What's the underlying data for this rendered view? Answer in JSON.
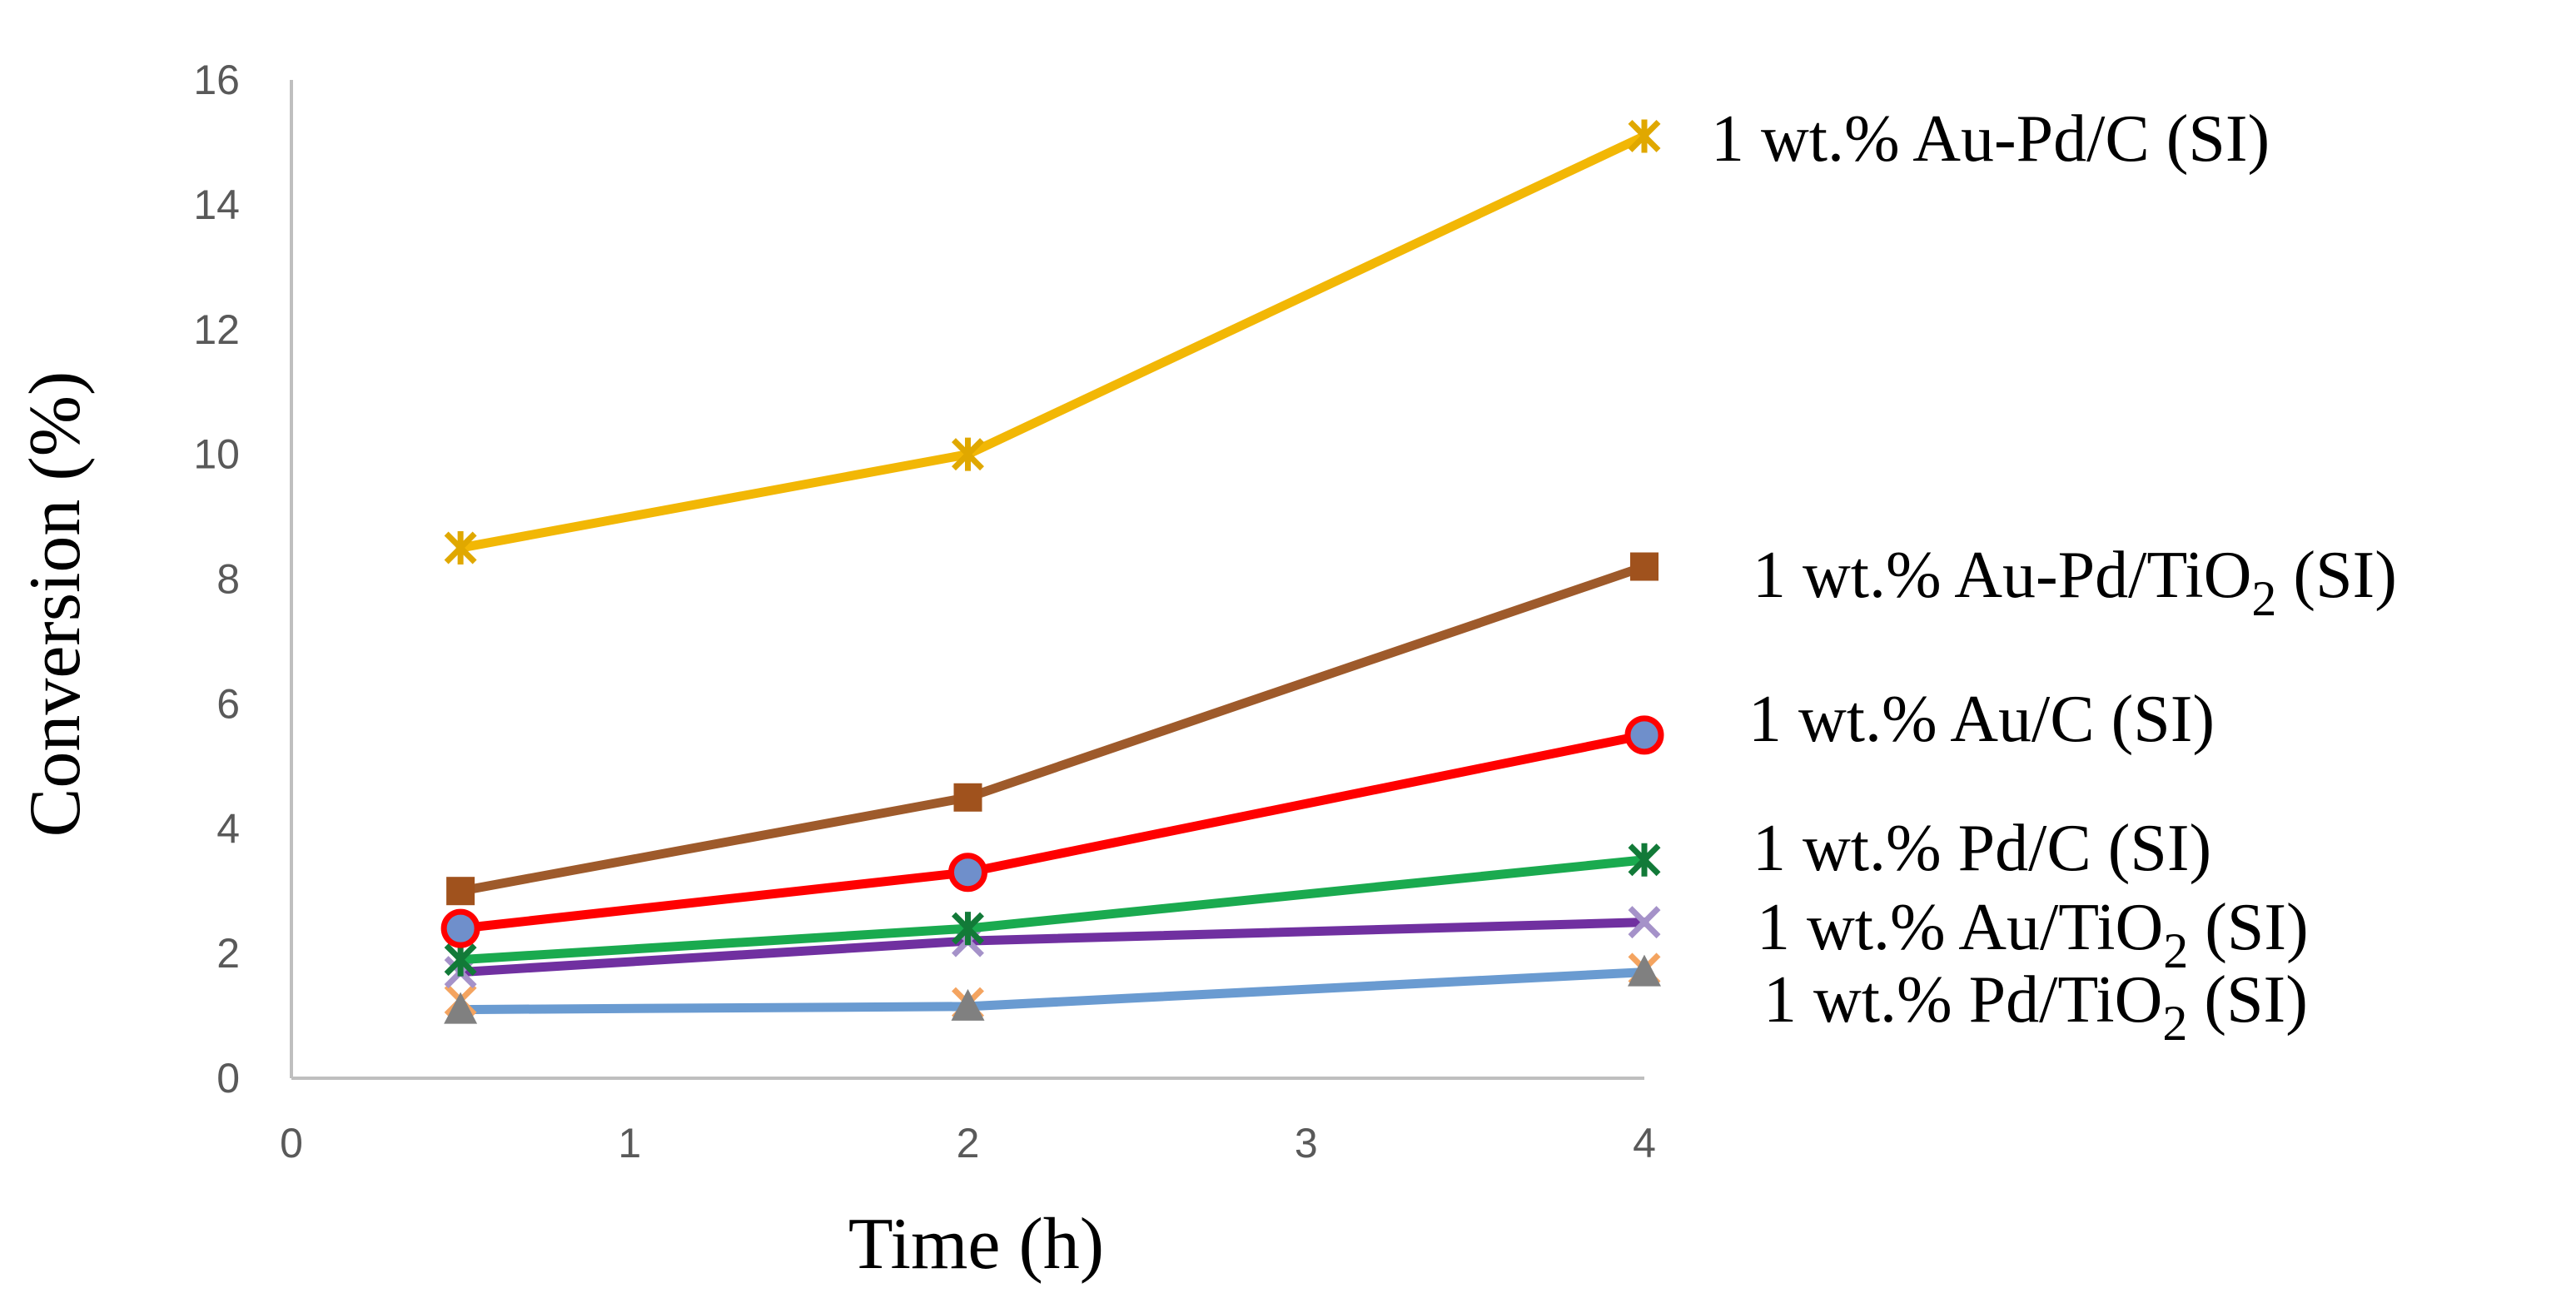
{
  "chart_data": {
    "type": "line",
    "xlabel": "Time (h)",
    "ylabel": "Conversion (%)",
    "xlim": [
      0,
      4
    ],
    "ylim": [
      0,
      16
    ],
    "x_ticks": [
      "0",
      "1",
      "2",
      "3",
      "4"
    ],
    "y_ticks": [
      "0",
      "2",
      "4",
      "6",
      "8",
      "10",
      "12",
      "14",
      "16"
    ],
    "grid": false,
    "legend": "labels at line ends (right)",
    "series": [
      {
        "name": "1 wt.% Au-Pd/C (SI)",
        "label_main": "1 wt.% Au-Pd/C (SI)",
        "label_sub": "",
        "label_tail": "",
        "color": "#F2B705",
        "marker": "star",
        "marker_color": "#E0A800",
        "x": [
          0.5,
          2,
          4
        ],
        "y": [
          8.5,
          10.0,
          15.1
        ]
      },
      {
        "name": "1 wt.% Au-Pd/TiO2 (SI)",
        "label_main": "1 wt.% Au-Pd/TiO",
        "label_sub": "2",
        "label_tail": " (SI)",
        "color": "#9E5A2B",
        "marker": "square",
        "marker_color": "#A0521D",
        "x": [
          0.5,
          2,
          4
        ],
        "y": [
          3.0,
          4.5,
          8.2
        ]
      },
      {
        "name": "1 wt.% Au/C (SI)",
        "label_main": "1 wt.% Au/C (SI)",
        "label_sub": "",
        "label_tail": "",
        "color": "#FF0000",
        "marker": "circle",
        "marker_color": "#6F8FCB",
        "x": [
          0.5,
          2,
          4
        ],
        "y": [
          2.4,
          3.3,
          5.5
        ]
      },
      {
        "name": "1 wt.% Pd/C (SI)",
        "label_main": "1 wt.% Pd/C (SI)",
        "label_sub": "",
        "label_tail": "",
        "color": "#1AAA4F",
        "marker": "star",
        "marker_color": "#127A38",
        "x": [
          0.5,
          2,
          4
        ],
        "y": [
          1.9,
          2.4,
          3.5
        ]
      },
      {
        "name": "1 wt.% Au/TiO2 (SI)",
        "label_main": "1 wt.% Au/TiO",
        "label_sub": "2",
        "label_tail": " (SI)",
        "color": "#7030A0",
        "marker": "xcross",
        "marker_color": "#A592C9",
        "x": [
          0.5,
          2,
          4
        ],
        "y": [
          1.7,
          2.2,
          2.5
        ]
      },
      {
        "name": "1 wt.% Pd/TiO2 (SI)",
        "label_main": "1 wt.% Pd/TiO",
        "label_sub": "2",
        "label_tail": " (SI)",
        "color": "#6A9BD1",
        "marker": "triangle",
        "marker_color": "#808080",
        "x": [
          0.5,
          2,
          4
        ],
        "y": [
          1.1,
          1.15,
          1.7
        ]
      }
    ],
    "extra_markers": [
      {
        "series_index": 5,
        "marker": "xcross",
        "color": "#F4A460",
        "x": [
          0.5,
          2,
          4
        ],
        "y": [
          1.25,
          1.2,
          1.75
        ]
      }
    ]
  }
}
